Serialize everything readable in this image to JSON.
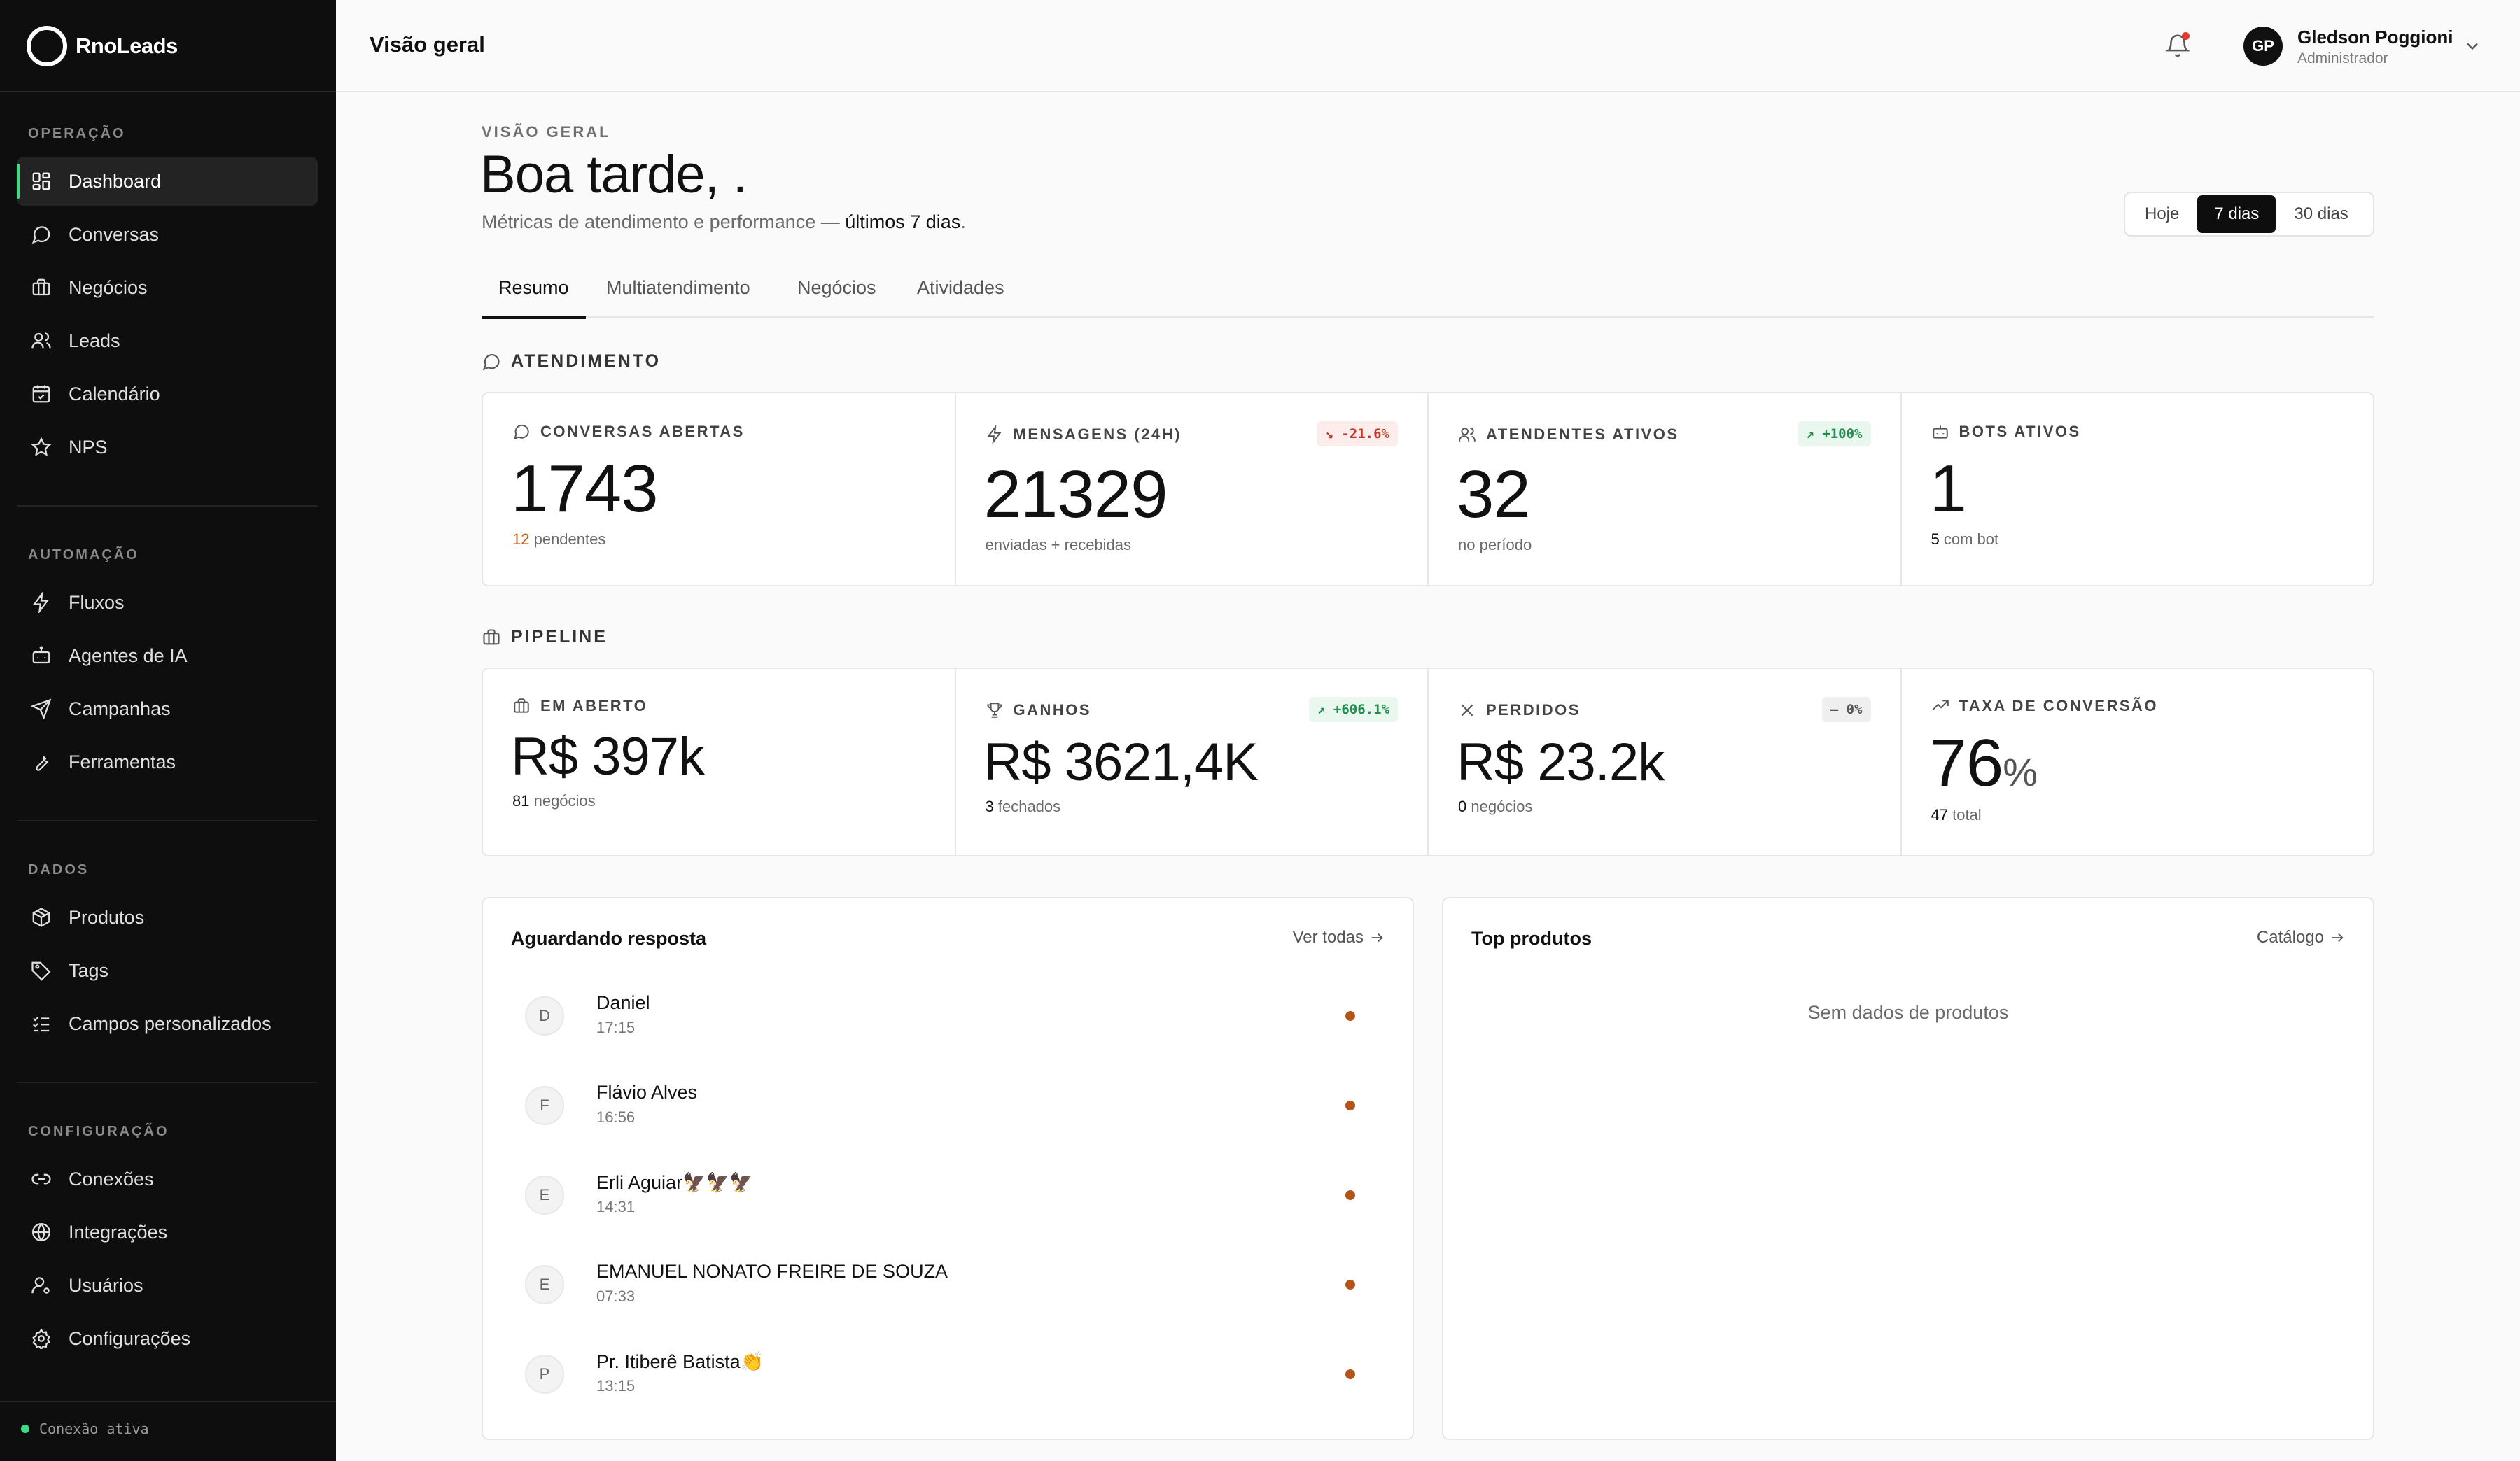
{
  "brand": {
    "name": "RnoLeads"
  },
  "sidebar": {
    "sections": [
      {
        "title": "OPERAÇÃO",
        "items": [
          {
            "label": "Dashboard",
            "icon": "dashboard-icon",
            "active": true
          },
          {
            "label": "Conversas",
            "icon": "chat-icon"
          },
          {
            "label": "Negócios",
            "icon": "briefcase-icon"
          },
          {
            "label": "Leads",
            "icon": "users-icon"
          },
          {
            "label": "Calendário",
            "icon": "calendar-check-icon"
          },
          {
            "label": "NPS",
            "icon": "star-icon"
          }
        ]
      },
      {
        "title": "AUTOMAÇÃO",
        "items": [
          {
            "label": "Fluxos",
            "icon": "zap-icon"
          },
          {
            "label": "Agentes de IA",
            "icon": "bot-icon"
          },
          {
            "label": "Campanhas",
            "icon": "send-icon"
          },
          {
            "label": "Ferramentas",
            "icon": "wrench-icon"
          }
        ]
      },
      {
        "title": "DADOS",
        "items": [
          {
            "label": "Produtos",
            "icon": "package-icon"
          },
          {
            "label": "Tags",
            "icon": "tag-icon"
          },
          {
            "label": "Campos personalizados",
            "icon": "list-checks-icon"
          }
        ]
      },
      {
        "title": "CONFIGURAÇÃO",
        "items": [
          {
            "label": "Conexões",
            "icon": "link-icon"
          },
          {
            "label": "Integrações",
            "icon": "globe-icon"
          },
          {
            "label": "Usuários",
            "icon": "user-cog-icon"
          },
          {
            "label": "Configurações",
            "icon": "gear-icon"
          }
        ]
      }
    ],
    "status": "Conexão ativa"
  },
  "header": {
    "title": "Visão geral",
    "user": {
      "initials": "GP",
      "name": "Gledson Poggioni",
      "role": "Administrador"
    }
  },
  "main": {
    "eyebrow": "VISÃO GERAL",
    "greeting": "Boa tarde, .",
    "subtitle_prefix": "Métricas de atendimento e performance — ",
    "subtitle_bold": "últimos 7 dias",
    "subtitle_suffix": ".",
    "range": [
      {
        "label": "Hoje"
      },
      {
        "label": "7 dias",
        "active": true
      },
      {
        "label": "30 dias"
      }
    ],
    "tabs": [
      {
        "label": "Resumo",
        "active": true
      },
      {
        "label": "Multiatendimento"
      },
      {
        "label": "Negócios"
      },
      {
        "label": "Atividades"
      }
    ],
    "atendimento": {
      "title": "ATENDIMENTO",
      "cards": [
        {
          "label": "CONVERSAS ABERTAS",
          "value": "1743",
          "sub_num": "12",
          "sub_text": " pendentes",
          "delta": ""
        },
        {
          "label": "MENSAGENS (24H)",
          "value": "21329",
          "sub_num": "",
          "sub_text": "enviadas + recebidas",
          "delta": "↘ -21.6%"
        },
        {
          "label": "ATENDENTES ATIVOS",
          "value": "32",
          "sub_num": "",
          "sub_text": "no período",
          "delta": "↗ +100%"
        },
        {
          "label": "BOTS ATIVOS",
          "value": "1",
          "sub_num": "5",
          "sub_text": " com bot",
          "delta": ""
        }
      ]
    },
    "pipeline": {
      "title": "PIPELINE",
      "cards": [
        {
          "label": "EM ABERTO",
          "value": "R$ 397k",
          "sub_num": "81",
          "sub_text": " negócios",
          "delta": ""
        },
        {
          "label": "GANHOS",
          "value": "R$ 3621,4K",
          "sub_num": "3",
          "sub_text": " fechados",
          "delta": "↗ +606.1%"
        },
        {
          "label": "PERDIDOS",
          "value": "R$ 23.2k",
          "sub_num": "0",
          "sub_text": " negócios",
          "delta": "— 0%"
        },
        {
          "label": "TAXA DE CONVERSÃO",
          "value": "76",
          "unit": "%",
          "sub_num": "47",
          "sub_text": " total",
          "delta": ""
        }
      ]
    },
    "waiting": {
      "title": "Aguardando resposta",
      "link": "Ver todas",
      "items": [
        {
          "initial": "D",
          "name": "Daniel",
          "time": "17:15"
        },
        {
          "initial": "F",
          "name": "Flávio Alves",
          "time": "16:56"
        },
        {
          "initial": "E",
          "name": "Erli Aguiar🦅🦅🦅",
          "time": "14:31"
        },
        {
          "initial": "E",
          "name": "EMANUEL NONATO FREIRE DE SOUZA",
          "time": "07:33"
        },
        {
          "initial": "P",
          "name": "Pr. Itiberê Batista👏",
          "time": "13:15"
        }
      ]
    },
    "top_products": {
      "title": "Top produtos",
      "link": "Catálogo",
      "empty": "Sem dados de produtos"
    }
  },
  "colors": {
    "sidebar_bg": "#0e0e0e",
    "accent_green": "#3ddc84",
    "unread_dot": "#b5541a",
    "pending_orange": "#c4621b"
  }
}
